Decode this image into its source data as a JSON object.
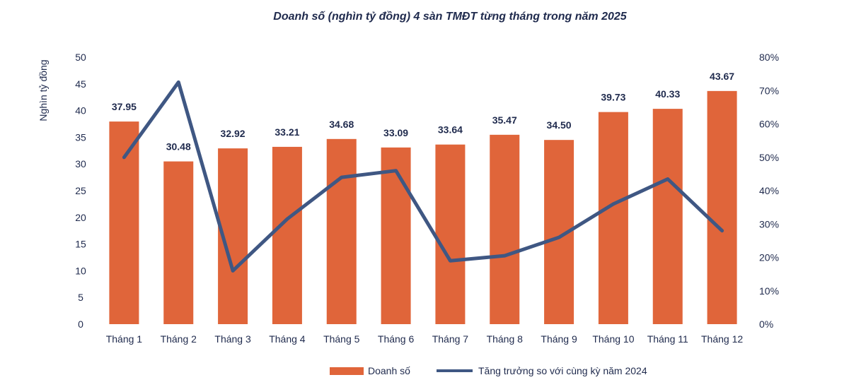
{
  "chart_data": {
    "type": "bar+line",
    "title": "Doanh số (nghìn tỷ đồng) 4 sàn TMĐT từng tháng trong năm 2025",
    "ylabel": "Nghìn tỷ đồng",
    "categories": [
      "Tháng 1",
      "Tháng 2",
      "Tháng 3",
      "Tháng 4",
      "Tháng 5",
      "Tháng 6",
      "Tháng 7",
      "Tháng 8",
      "Tháng 9",
      "Tháng 10",
      "Tháng 11",
      "Tháng 12"
    ],
    "ylim": [
      0,
      50
    ],
    "y_ticks": [
      "0",
      "5",
      "10",
      "15",
      "20",
      "25",
      "30",
      "35",
      "40",
      "45",
      "50"
    ],
    "y2lim": [
      0,
      80
    ],
    "y2_ticks": [
      "0%",
      "10%",
      "20%",
      "30%",
      "40%",
      "50%",
      "60%",
      "70%",
      "80%"
    ],
    "series": [
      {
        "name": "Doanh số",
        "type": "bar",
        "color": "#e0653a",
        "values": [
          37.95,
          30.48,
          32.92,
          33.21,
          34.68,
          33.09,
          33.64,
          35.47,
          34.5,
          39.73,
          40.33,
          43.67
        ],
        "labels": [
          "37.95",
          "30.48",
          "32.92",
          "33.21",
          "34.68",
          "33.09",
          "33.64",
          "35.47",
          "34.50",
          "39.73",
          "40.33",
          "43.67"
        ]
      },
      {
        "name": "Tăng trưởng so với cùng kỳ năm 2024",
        "type": "line",
        "axis": "right",
        "color": "#3f5783",
        "values": [
          50,
          72.5,
          16,
          31.5,
          44,
          46,
          19,
          20.5,
          26,
          36,
          43.5,
          28
        ]
      }
    ],
    "legend": "bottom-center"
  }
}
